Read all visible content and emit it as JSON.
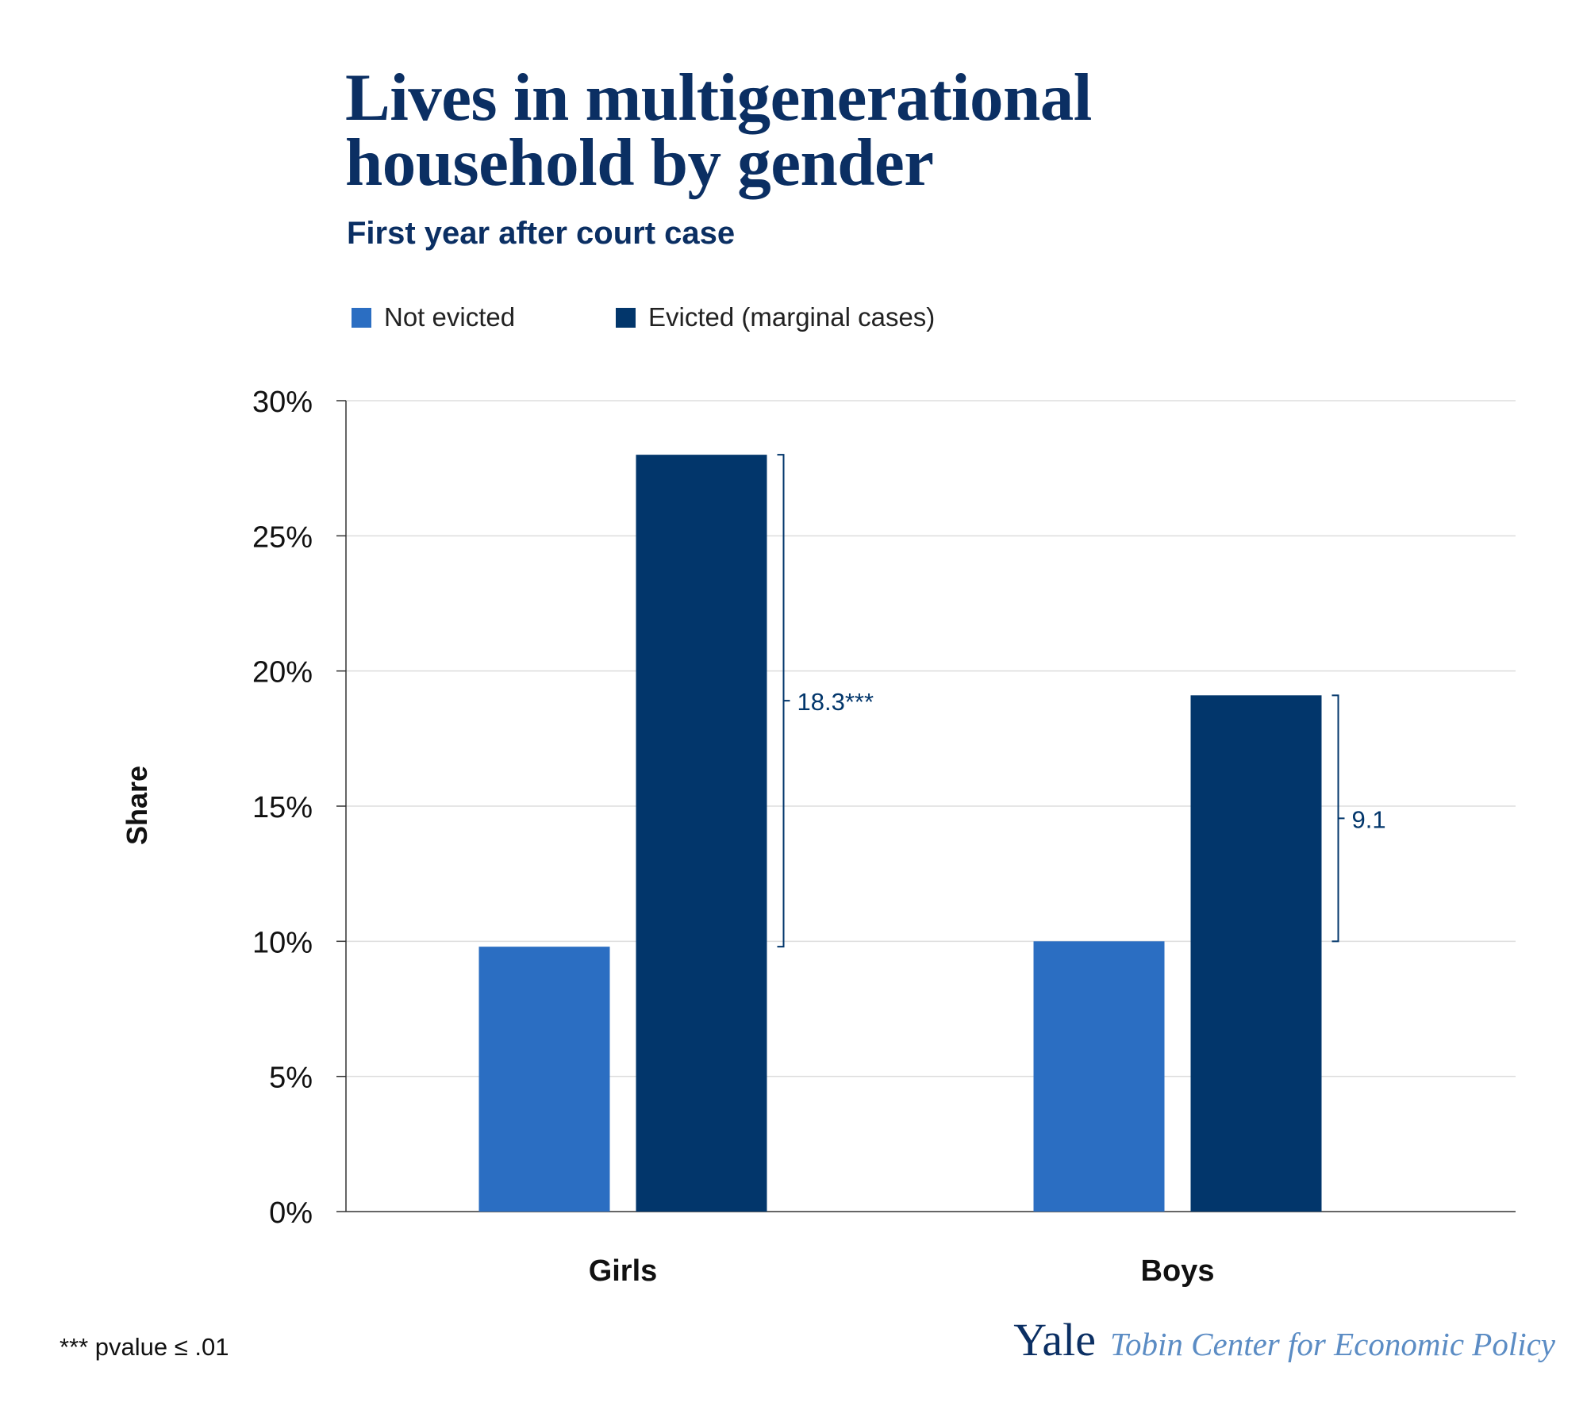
{
  "title_line1": "Lives in multigenerational",
  "title_line2": "household by gender",
  "subtitle": "First year after court case",
  "colors": {
    "not_evicted": "#2b6ec2",
    "evicted": "#02366b",
    "title": "#0b2f63",
    "grid": "#dddddd",
    "axis": "#333333"
  },
  "legend": [
    {
      "label": "Not evicted",
      "color": "#2b6ec2"
    },
    {
      "label": "Evicted (marginal cases)",
      "color": "#02366b"
    }
  ],
  "chart_data": {
    "type": "bar",
    "title": "Lives in multigenerational household by gender",
    "subtitle": "First year after court case",
    "xlabel": "",
    "ylabel": "Share",
    "categories": [
      "Girls",
      "Boys"
    ],
    "series": [
      {
        "name": "Not evicted",
        "values": [
          9.8,
          10.0
        ]
      },
      {
        "name": "Evicted (marginal cases)",
        "values": [
          28.0,
          19.1
        ]
      }
    ],
    "ylim": [
      0,
      30
    ],
    "yticks": [
      0,
      5,
      10,
      15,
      20,
      25,
      30
    ],
    "ytick_labels": [
      "0%",
      "5%",
      "10%",
      "15%",
      "20%",
      "25%",
      "30%"
    ],
    "grid": true,
    "legend_position": "top-left",
    "annotations": [
      {
        "category": "Girls",
        "label": "18.3***"
      },
      {
        "category": "Boys",
        "label": "9.1"
      }
    ]
  },
  "footnote": "*** pvalue ≤ .01",
  "brand": {
    "yale": "Yale",
    "center": "Tobin Center for Economic Policy"
  }
}
